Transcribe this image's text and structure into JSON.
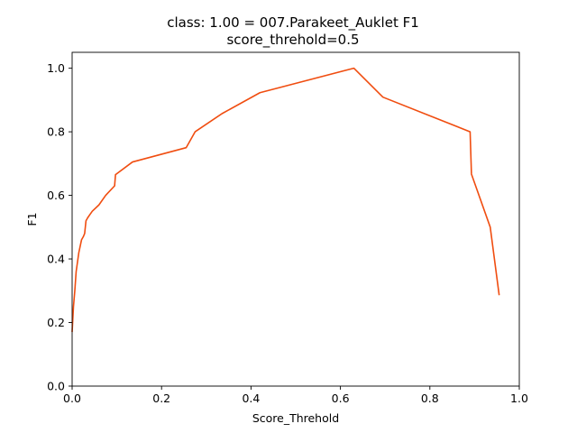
{
  "chart_data": {
    "type": "line",
    "title": "class: 1.00 = 007.Parakeet_Auklet F1",
    "subtitle": "score_threhold=0.5",
    "xlabel": "Score_Threhold",
    "ylabel": "F1",
    "xlim": [
      0.0,
      1.0
    ],
    "ylim": [
      0.0,
      1.05
    ],
    "xticks": [
      "0.0",
      "0.2",
      "0.4",
      "0.6",
      "0.8",
      "1.0"
    ],
    "yticks": [
      "0.0",
      "0.2",
      "0.4",
      "0.6",
      "0.8",
      "1.0"
    ],
    "grid": false,
    "line_color": "#f04d10",
    "series": [
      {
        "x": [
          0.0,
          0.003,
          0.006,
          0.009,
          0.012,
          0.015,
          0.018,
          0.021,
          0.025,
          0.028,
          0.031,
          0.035,
          0.04,
          0.045,
          0.06,
          0.075,
          0.095,
          0.097,
          0.135,
          0.255,
          0.275,
          0.335,
          0.42,
          0.63,
          0.695,
          0.89,
          0.893,
          0.935,
          0.955
        ],
        "y": [
          0.17,
          0.25,
          0.3,
          0.36,
          0.39,
          0.42,
          0.44,
          0.46,
          0.47,
          0.48,
          0.52,
          0.53,
          0.54,
          0.55,
          0.57,
          0.6,
          0.63,
          0.665,
          0.705,
          0.75,
          0.8,
          0.857,
          0.923,
          1.0,
          0.909,
          0.8,
          0.667,
          0.5,
          0.286
        ]
      }
    ]
  }
}
